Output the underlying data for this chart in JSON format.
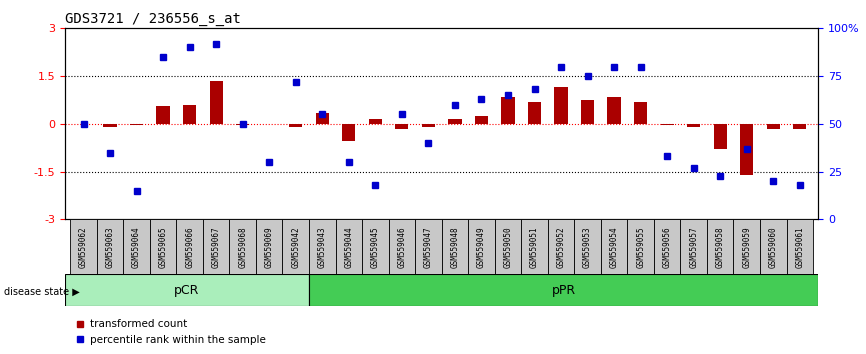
{
  "title": "GDS3721 / 236556_s_at",
  "samples": [
    "GSM559062",
    "GSM559063",
    "GSM559064",
    "GSM559065",
    "GSM559066",
    "GSM559067",
    "GSM559068",
    "GSM559069",
    "GSM559042",
    "GSM559043",
    "GSM559044",
    "GSM559045",
    "GSM559046",
    "GSM559047",
    "GSM559048",
    "GSM559049",
    "GSM559050",
    "GSM559051",
    "GSM559052",
    "GSM559053",
    "GSM559054",
    "GSM559055",
    "GSM559056",
    "GSM559057",
    "GSM559058",
    "GSM559059",
    "GSM559060",
    "GSM559061"
  ],
  "transformed_count": [
    0.0,
    -0.1,
    -0.05,
    0.55,
    0.6,
    1.35,
    -0.05,
    0.0,
    -0.1,
    0.35,
    -0.55,
    0.15,
    -0.15,
    -0.1,
    0.15,
    0.25,
    0.85,
    0.7,
    1.15,
    0.75,
    0.85,
    0.7,
    -0.05,
    -0.1,
    -0.8,
    -1.6,
    -0.15,
    -0.15
  ],
  "percentile_rank": [
    50,
    35,
    15,
    85,
    90,
    92,
    50,
    30,
    72,
    55,
    30,
    18,
    55,
    40,
    60,
    63,
    65,
    68,
    80,
    75,
    80,
    80,
    33,
    27,
    23,
    37,
    20,
    18
  ],
  "group_labels": [
    "pCR",
    "pPR"
  ],
  "group_split": 9,
  "group_total": 28,
  "bar_color": "#AA0000",
  "dot_color": "#0000CC",
  "ylim_left": [
    -3,
    3
  ],
  "ylim_right": [
    0,
    100
  ],
  "yticks_left": [
    -3,
    -1.5,
    0,
    1.5,
    3
  ],
  "yticks_right": [
    0,
    25,
    50,
    75,
    100
  ],
  "ytick_right_labels": [
    "0",
    "25",
    "50",
    "75",
    "100%"
  ],
  "dotted_lines": [
    -1.5,
    1.5
  ],
  "background_color": "#ffffff"
}
